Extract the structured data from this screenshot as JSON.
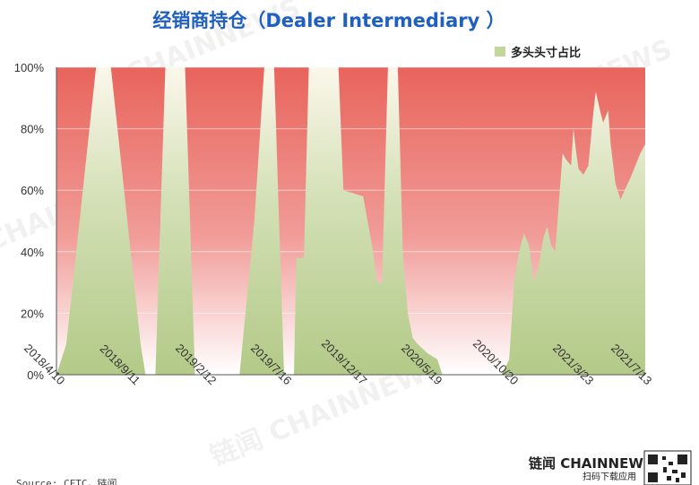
{
  "chart_data": {
    "type": "area",
    "title": "经销商持仓（Dealer Intermediary ）",
    "legend": {
      "position": "top-right",
      "label": "多头头寸占比"
    },
    "ylim": [
      0,
      100
    ],
    "y_ticks": [
      "0%",
      "20%",
      "40%",
      "60%",
      "80%",
      "100%"
    ],
    "x_tick_labels": [
      "2018/4/10",
      "2018/9/11",
      "2019/2/12",
      "2019/7/16",
      "2019/12/17",
      "2020/5/19",
      "2020/10/20",
      "2021/3/23",
      "2021/7/13"
    ],
    "colors": {
      "long": "#b8cf8e",
      "top": "#e8645c",
      "bottom": "#ffffff"
    },
    "series": [
      {
        "name": "多头头寸占比",
        "values": [
          [
            0,
            0
          ],
          [
            2,
            10
          ],
          [
            4,
            40
          ],
          [
            6,
            70
          ],
          [
            8,
            100
          ],
          [
            11,
            100
          ],
          [
            13,
            70
          ],
          [
            15,
            40
          ],
          [
            17,
            10
          ],
          [
            18,
            0
          ],
          [
            20,
            0
          ],
          [
            21,
            50
          ],
          [
            22,
            100
          ],
          [
            26,
            100
          ],
          [
            27,
            50
          ],
          [
            28,
            0
          ],
          [
            37,
            0
          ],
          [
            40,
            50
          ],
          [
            42,
            100
          ],
          [
            44,
            100
          ],
          [
            45,
            50
          ],
          [
            46,
            0
          ],
          [
            48,
            0
          ],
          [
            48.5,
            38
          ],
          [
            50,
            38
          ],
          [
            51,
            100
          ],
          [
            57,
            100
          ],
          [
            58,
            60
          ],
          [
            60,
            59
          ],
          [
            62,
            58
          ],
          [
            64,
            40
          ],
          [
            64.8,
            30
          ],
          [
            65.8,
            30
          ],
          [
            67,
            100
          ],
          [
            69,
            100
          ],
          [
            70,
            40
          ],
          [
            71,
            20
          ],
          [
            72,
            12
          ],
          [
            73,
            10
          ],
          [
            75,
            7
          ],
          [
            77,
            5
          ],
          [
            78,
            0
          ],
          [
            90,
            0
          ],
          [
            91.5,
            5
          ],
          [
            92.5,
            30
          ],
          [
            93.5,
            40
          ],
          [
            94.5,
            46
          ],
          [
            95.5,
            42
          ],
          [
            96.5,
            30
          ],
          [
            97.5,
            36
          ],
          [
            98.5,
            45
          ],
          [
            99.2,
            48
          ],
          [
            100,
            42
          ],
          [
            100.8,
            40
          ],
          [
            101.5,
            55
          ],
          [
            102.3,
            72
          ],
          [
            103,
            70
          ],
          [
            104,
            68
          ],
          [
            104.5,
            80
          ],
          [
            105,
            73
          ],
          [
            105.5,
            67
          ],
          [
            106.5,
            65
          ],
          [
            107.5,
            68
          ],
          [
            108.5,
            85
          ],
          [
            109,
            92
          ],
          [
            110,
            85
          ],
          [
            110.5,
            82
          ],
          [
            111.5,
            86
          ],
          [
            112,
            75
          ],
          [
            113,
            62
          ],
          [
            114,
            57
          ],
          [
            116,
            64
          ],
          [
            117,
            68
          ],
          [
            118,
            72
          ],
          [
            119,
            75
          ]
        ]
      }
    ]
  },
  "source_text": "Source: CFTC，链闻",
  "brand": {
    "logo_text": "链闻 CHAINNEWS",
    "tagline": "扫码下载应用"
  }
}
